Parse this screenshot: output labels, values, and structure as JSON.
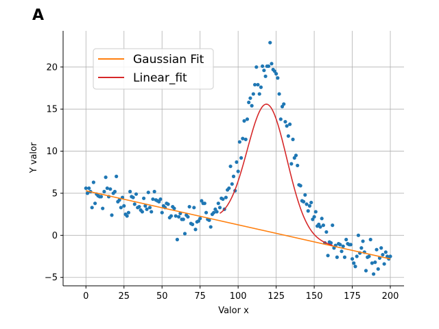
{
  "panel_label": "A",
  "chart_data": {
    "type": "scatter",
    "xlabel": "Valor x",
    "ylabel": "Y valor",
    "xlim": [
      -15,
      209
    ],
    "ylim": [
      -6,
      24.3
    ],
    "x_ticks": [
      0,
      25,
      50,
      75,
      100,
      125,
      150,
      175,
      200
    ],
    "y_ticks": [
      -5,
      0,
      5,
      10,
      15,
      20
    ],
    "grid": true,
    "legend_position": "top-left",
    "scatter": {
      "color": "#1f77b4",
      "points": [
        [
          0,
          5.6
        ],
        [
          1,
          5.0
        ],
        [
          2,
          5.6
        ],
        [
          3,
          5.2
        ],
        [
          4,
          3.3
        ],
        [
          5,
          6.3
        ],
        [
          6,
          3.8
        ],
        [
          7,
          4.9
        ],
        [
          8,
          4.7
        ],
        [
          9,
          4.6
        ],
        [
          10,
          4.6
        ],
        [
          11,
          3.2
        ],
        [
          12,
          5.2
        ],
        [
          13,
          6.9
        ],
        [
          14,
          5.6
        ],
        [
          15,
          4.6
        ],
        [
          16,
          5.5
        ],
        [
          17,
          2.4
        ],
        [
          18,
          5.0
        ],
        [
          19,
          5.2
        ],
        [
          20,
          7.0
        ],
        [
          21,
          4.0
        ],
        [
          22,
          4.2
        ],
        [
          23,
          3.3
        ],
        [
          24,
          4.5
        ],
        [
          25,
          3.5
        ],
        [
          26,
          2.5
        ],
        [
          27,
          2.3
        ],
        [
          28,
          2.7
        ],
        [
          29,
          5.2
        ],
        [
          30,
          4.6
        ],
        [
          31,
          4.5
        ],
        [
          32,
          3.7
        ],
        [
          33,
          4.9
        ],
        [
          34,
          3.3
        ],
        [
          35,
          3.4
        ],
        [
          36,
          3.0
        ],
        [
          37,
          2.8
        ],
        [
          38,
          4.4
        ],
        [
          39,
          3.5
        ],
        [
          40,
          3.1
        ],
        [
          41,
          5.1
        ],
        [
          42,
          3.3
        ],
        [
          43,
          2.8
        ],
        [
          44,
          4.3
        ],
        [
          45,
          5.2
        ],
        [
          46,
          4.2
        ],
        [
          47,
          4.1
        ],
        [
          48,
          4.0
        ],
        [
          49,
          4.3
        ],
        [
          50,
          2.7
        ],
        [
          51,
          3.5
        ],
        [
          52,
          3.3
        ],
        [
          53,
          3.8
        ],
        [
          54,
          3.7
        ],
        [
          55,
          2.1
        ],
        [
          56,
          2.3
        ],
        [
          57,
          3.4
        ],
        [
          58,
          3.2
        ],
        [
          59,
          2.3
        ],
        [
          60,
          -0.5
        ],
        [
          61,
          2.2
        ],
        [
          62,
          2.6
        ],
        [
          63,
          1.9
        ],
        [
          64,
          1.9
        ],
        [
          65,
          0.2
        ],
        [
          66,
          2.4
        ],
        [
          67,
          2.2
        ],
        [
          68,
          3.4
        ],
        [
          69,
          1.4
        ],
        [
          70,
          1.3
        ],
        [
          71,
          3.3
        ],
        [
          72,
          0.7
        ],
        [
          73,
          1.6
        ],
        [
          74,
          1.7
        ],
        [
          75,
          2.0
        ],
        [
          76,
          4.1
        ],
        [
          77,
          3.8
        ],
        [
          78,
          3.8
        ],
        [
          79,
          2.7
        ],
        [
          80,
          1.9
        ],
        [
          81,
          1.8
        ],
        [
          82,
          1.0
        ],
        [
          83,
          2.5
        ],
        [
          84,
          2.7
        ],
        [
          85,
          3.1
        ],
        [
          86,
          2.8
        ],
        [
          87,
          3.8
        ],
        [
          88,
          3.3
        ],
        [
          89,
          4.4
        ],
        [
          90,
          4.3
        ],
        [
          91,
          3.1
        ],
        [
          92,
          4.5
        ],
        [
          93,
          5.4
        ],
        [
          94,
          5.6
        ],
        [
          95,
          8.2
        ],
        [
          96,
          6.1
        ],
        [
          97,
          7.0
        ],
        [
          98,
          5.3
        ],
        [
          99,
          8.7
        ],
        [
          100,
          7.6
        ],
        [
          101,
          11.1
        ],
        [
          102,
          9.2
        ],
        [
          103,
          11.5
        ],
        [
          104,
          13.6
        ],
        [
          105,
          11.4
        ],
        [
          106,
          13.8
        ],
        [
          107,
          15.8
        ],
        [
          108,
          16.3
        ],
        [
          109,
          15.4
        ],
        [
          110,
          16.8
        ],
        [
          111,
          17.9
        ],
        [
          112,
          20.0
        ],
        [
          113,
          17.9
        ],
        [
          114,
          16.8
        ],
        [
          115,
          17.6
        ],
        [
          116,
          20.1
        ],
        [
          117,
          19.6
        ],
        [
          118,
          18.9
        ],
        [
          119,
          20.1
        ],
        [
          120,
          20.1
        ],
        [
          121,
          22.9
        ],
        [
          122,
          20.4
        ],
        [
          123,
          19.7
        ],
        [
          124,
          19.5
        ],
        [
          125,
          19.2
        ],
        [
          126,
          18.7
        ],
        [
          127,
          16.8
        ],
        [
          128,
          13.8
        ],
        [
          129,
          15.3
        ],
        [
          130,
          15.6
        ],
        [
          131,
          13.5
        ],
        [
          132,
          13.0
        ],
        [
          133,
          11.8
        ],
        [
          134,
          13.2
        ],
        [
          135,
          8.5
        ],
        [
          136,
          11.4
        ],
        [
          137,
          9.2
        ],
        [
          138,
          9.5
        ],
        [
          139,
          8.3
        ],
        [
          140,
          6.0
        ],
        [
          141,
          5.9
        ],
        [
          142,
          4.1
        ],
        [
          143,
          4.0
        ],
        [
          144,
          4.8
        ],
        [
          145,
          3.7
        ],
        [
          146,
          2.9
        ],
        [
          147,
          3.5
        ],
        [
          148,
          3.9
        ],
        [
          149,
          1.9
        ],
        [
          150,
          2.2
        ],
        [
          151,
          2.8
        ],
        [
          152,
          1.1
        ],
        [
          153,
          1.3
        ],
        [
          154,
          1.0
        ],
        [
          155,
          2.0
        ],
        [
          156,
          1.2
        ],
        [
          157,
          -0.9
        ],
        [
          158,
          0.4
        ],
        [
          159,
          -2.4
        ],
        [
          160,
          -0.8
        ],
        [
          161,
          -0.9
        ],
        [
          162,
          1.2
        ],
        [
          163,
          -1.5
        ],
        [
          164,
          -1.2
        ],
        [
          165,
          -2.6
        ],
        [
          166,
          -1.0
        ],
        [
          167,
          -1.1
        ],
        [
          168,
          -1.9
        ],
        [
          169,
          -1.3
        ],
        [
          170,
          -2.6
        ],
        [
          171,
          -0.5
        ],
        [
          172,
          -1.0
        ],
        [
          173,
          -1.1
        ],
        [
          174,
          -1.1
        ],
        [
          175,
          -2.8
        ],
        [
          176,
          -3.3
        ],
        [
          177,
          -3.7
        ],
        [
          178,
          -2.5
        ],
        [
          179,
          0.0
        ],
        [
          180,
          -2.1
        ],
        [
          181,
          -1.5
        ],
        [
          182,
          -0.7
        ],
        [
          183,
          -2.0
        ],
        [
          184,
          -4.2
        ],
        [
          185,
          -2.6
        ],
        [
          186,
          -2.5
        ],
        [
          187,
          -0.5
        ],
        [
          188,
          -3.3
        ],
        [
          189,
          -4.6
        ],
        [
          190,
          -3.2
        ],
        [
          191,
          -1.7
        ],
        [
          192,
          -4.0
        ],
        [
          193,
          -2.7
        ],
        [
          194,
          -1.5
        ],
        [
          195,
          -2.3
        ],
        [
          196,
          -3.4
        ],
        [
          197,
          -2.0
        ],
        [
          198,
          -2.5
        ],
        [
          199,
          -2.8
        ],
        [
          200,
          -2.5
        ]
      ]
    },
    "series": [
      {
        "name": "Gaussian Fit",
        "color": "#ff7f0e",
        "kind": "line",
        "x": [
          0,
          200
        ],
        "y": [
          5.3,
          -2.8
        ]
      },
      {
        "name": "Linear_fit",
        "color": "#d62728",
        "kind": "gaussian_plus_linear",
        "x_range": [
          88,
          162
        ],
        "intercept": 5.3,
        "slope": -0.0405,
        "amplitude": 15.1,
        "center": 119,
        "sigma": 13
      }
    ]
  }
}
